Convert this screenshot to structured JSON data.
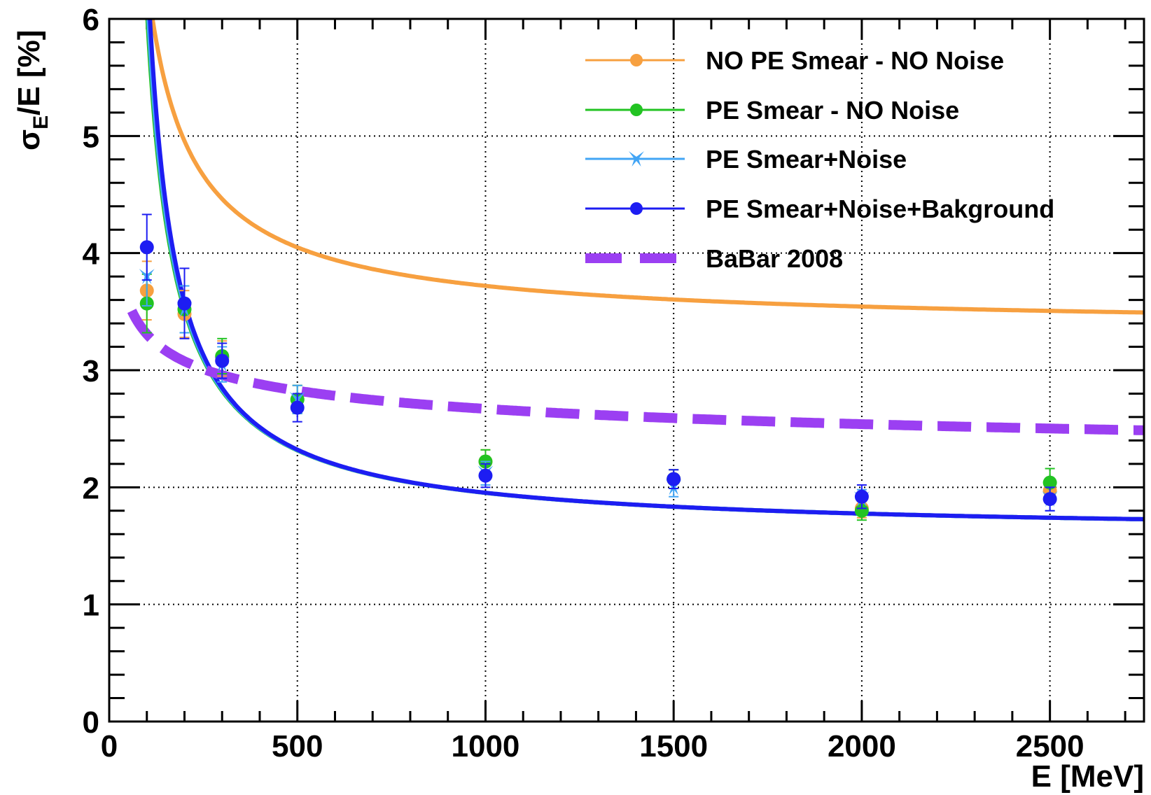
{
  "chart_data": {
    "type": "line",
    "xlabel": "E [MeV]",
    "ylabel": "σ_E/E [%]",
    "ylabel_main": "σ",
    "ylabel_sub": "E",
    "ylabel_rest": "/E [%]",
    "xlim": [
      0,
      2750
    ],
    "ylim": [
      0,
      6
    ],
    "xticks": [
      0,
      500,
      1000,
      1500,
      2000,
      2500
    ],
    "yticks": [
      0,
      1,
      2,
      3,
      4,
      5,
      6
    ],
    "xtick_labels": [
      "0",
      "500",
      "1000",
      "1500",
      "2000",
      "2500"
    ],
    "ytick_labels": [
      "0",
      "1",
      "2",
      "3",
      "4",
      "5",
      "6"
    ],
    "grid": true,
    "legend_position": "top-right",
    "series": [
      {
        "name": "NO PE Smear - NO Noise",
        "color": "#f7a040",
        "marker": "circle",
        "x": [
          100,
          200,
          300,
          500,
          1000,
          1500,
          2000,
          2500
        ],
        "y": [
          3.68,
          3.48,
          3.1,
          2.75,
          2.22,
          2.07,
          1.82,
          1.97
        ],
        "err": [
          0.25,
          0.2,
          0.15,
          0.12,
          0.1,
          0.08,
          0.08,
          0.1
        ],
        "fit": {
          "a": 1.54,
          "b": 53.7,
          "c": 0.0,
          "model": "stochastic+constant"
        }
      },
      {
        "name": "PE Smear - NO Noise",
        "color": "#22c322",
        "marker": "circle",
        "x": [
          100,
          200,
          300,
          500,
          1000,
          1500,
          2000,
          2500
        ],
        "y": [
          3.57,
          3.52,
          3.12,
          2.75,
          2.22,
          2.07,
          1.8,
          2.04
        ],
        "err": [
          0.25,
          0.2,
          0.15,
          0.12,
          0.1,
          0.08,
          0.08,
          0.12
        ],
        "fit": {
          "a": 1.47,
          "b": 46.0,
          "c": 2.5,
          "model": "quadrature"
        }
      },
      {
        "name": "PE Smear+Noise",
        "color": "#42a5f5",
        "marker": "star",
        "x": [
          100,
          200,
          300,
          500,
          1000,
          1500,
          2000,
          2500
        ],
        "y": [
          3.8,
          3.52,
          3.05,
          2.75,
          2.12,
          2.0,
          1.9,
          1.9
        ],
        "err": [
          0.25,
          0.2,
          0.15,
          0.12,
          0.1,
          0.08,
          0.08,
          0.1
        ],
        "fit": {
          "a": 1.44,
          "b": 45.0,
          "c": 2.9,
          "model": "quadrature"
        }
      },
      {
        "name": "PE Smear+Noise+Bakground",
        "color": "#1d1df2",
        "marker": "circle",
        "x": [
          100,
          200,
          300,
          500,
          1000,
          1500,
          2000,
          2500
        ],
        "y": [
          4.05,
          3.57,
          3.08,
          2.68,
          2.1,
          2.07,
          1.92,
          1.9
        ],
        "err": [
          0.28,
          0.3,
          0.15,
          0.12,
          0.1,
          0.08,
          0.1,
          0.1
        ],
        "fit": {
          "a": 1.43,
          "b": 42.6,
          "c": 3.6,
          "model": "quadrature"
        }
      },
      {
        "name": "BaBar 2008",
        "color": "#9b3ff2",
        "marker": "none",
        "style": "dashed",
        "x": [],
        "y": [],
        "err": [],
        "fit": {
          "a": 1.85,
          "b": 2.3,
          "c": 0.0,
          "model": "power4"
        }
      }
    ]
  }
}
